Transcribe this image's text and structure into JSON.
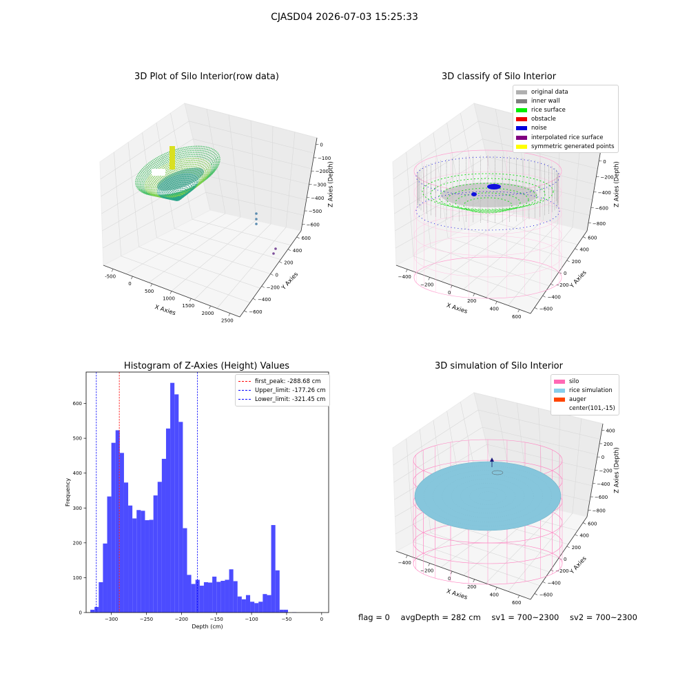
{
  "suptitle": "CJASD04 2026-07-03 15:25:33",
  "panel1": {
    "title": "3D Plot of Silo Interior(row data)",
    "xlabel": "X Axies",
    "ylabel": "Y Axies",
    "zlabel": "Z Axies (Depth)",
    "xticks": [
      "-500",
      "0",
      "500",
      "1000",
      "1500",
      "2000",
      "2500"
    ],
    "yticks": [
      "600",
      "400",
      "200",
      "0",
      "−200",
      "−400",
      "−600"
    ],
    "zticks": [
      "0",
      "−100",
      "−200",
      "−300",
      "−400",
      "−500",
      "−600"
    ]
  },
  "panel2": {
    "title": "3D classify of Silo Interior",
    "xlabel": "X Axies",
    "ylabel": "Y Axies",
    "zlabel": "Z Axies (Depth)",
    "xticks": [
      "−400",
      "−200",
      "0",
      "200",
      "400",
      "600"
    ],
    "yticks": [
      "600",
      "400",
      "200",
      "0",
      "−200",
      "−400",
      "−600"
    ],
    "zticks": [
      "200",
      "0",
      "−200",
      "−400",
      "−600",
      "−800"
    ],
    "legend": [
      {
        "label": "original data",
        "color": "#b0b0b0"
      },
      {
        "label": "inner wall",
        "color": "#808080"
      },
      {
        "label": "rice surface",
        "color": "#00ee00"
      },
      {
        "label": "obstacle",
        "color": "#ee0000"
      },
      {
        "label": "noise",
        "color": "#0000dd"
      },
      {
        "label": "interpolated rice surface",
        "color": "#800080"
      },
      {
        "label": "symmetric generated points",
        "color": "#ffff00"
      }
    ]
  },
  "panel4": {
    "title": "3D simulation of Silo Interior",
    "xlabel": "X Axies",
    "ylabel": "Y Axies",
    "zlabel": "Z Axies (Depth)",
    "xticks": [
      "−400",
      "−200",
      "0",
      "200",
      "400",
      "600"
    ],
    "yticks": [
      "600",
      "400",
      "200",
      "0",
      "−200",
      "−400",
      "−600"
    ],
    "zticks": [
      "400",
      "200",
      "0",
      "−200",
      "−400",
      "−600",
      "−800"
    ],
    "legend": [
      {
        "label": "silo",
        "color": "#ff69b4"
      },
      {
        "label": "rice simulation",
        "color": "#87ceeb"
      },
      {
        "label": "auger",
        "color": "#ff4500"
      },
      {
        "label": "center(101,-15)",
        "color": ""
      }
    ]
  },
  "chart_data": {
    "type": "bar",
    "title": "Histogram of Z-Axies (Height) Values",
    "xlabel": "Depth (cm)",
    "ylabel": "Frequency",
    "xlim": [
      -336,
      10
    ],
    "ylim": [
      0,
      690
    ],
    "bin_width": 6.0,
    "bin_start": -330,
    "xticks": [
      -300,
      -250,
      -200,
      -150,
      -100,
      -50,
      0
    ],
    "xtick_labels": [
      "−300",
      "−250",
      "−200",
      "−150",
      "−100",
      "−50",
      "0"
    ],
    "yticks": [
      0,
      100,
      200,
      300,
      400,
      500,
      600
    ],
    "bar_color": "#4c4cff",
    "values": [
      8,
      16,
      87,
      198,
      333,
      487,
      523,
      458,
      373,
      307,
      270,
      294,
      292,
      265,
      266,
      336,
      375,
      441,
      528,
      659,
      626,
      547,
      242,
      108,
      82,
      94,
      77,
      87,
      86,
      103,
      88,
      91,
      94,
      124,
      90,
      46,
      38,
      50,
      31,
      27,
      31,
      53,
      50,
      251,
      121,
      8,
      8,
      0,
      1
    ],
    "vlines": [
      {
        "label": "first_peak: -288.68 cm",
        "x": -288.68,
        "color": "#ff0000"
      },
      {
        "label": "Upper_limit: -177.26 cm",
        "x": -177.26,
        "color": "#0000ff"
      },
      {
        "label": "Lower_limit: -321.45 cm",
        "x": -321.45,
        "color": "#0000ff"
      }
    ]
  },
  "footer": {
    "flag": "flag = 0",
    "avg": "avgDepth = 282 cm",
    "sv1": "sv1 = 700~2300",
    "sv2": "sv2 = 700~2300"
  }
}
